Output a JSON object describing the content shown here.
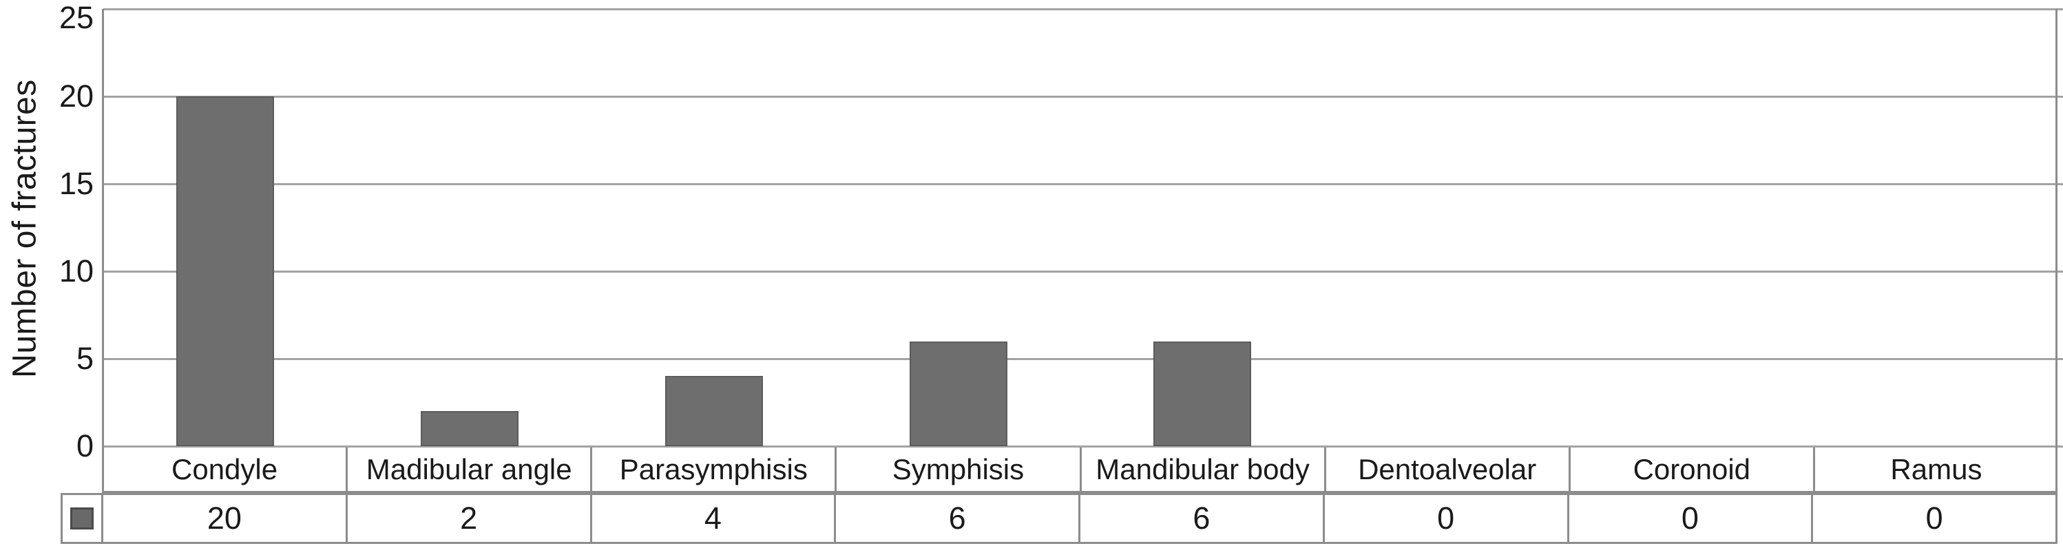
{
  "chart_data": {
    "type": "bar",
    "title": "",
    "xlabel": "",
    "ylabel": "Number of fractures",
    "categories": [
      "Condyle",
      "Madibular angle",
      "Parasymphisis",
      "Symphisis",
      "Mandibular body",
      "Dentoalveolar",
      "Coronoid",
      "Ramus"
    ],
    "series": [
      {
        "name": "Number of fractures",
        "values": [
          20,
          2,
          4,
          6,
          6,
          0,
          0,
          0
        ]
      }
    ],
    "y_ticks": [
      0,
      5,
      10,
      15,
      20,
      25
    ],
    "ylim": [
      0,
      25
    ],
    "grid": "horizontal",
    "legend_position": "table-left-swatch",
    "data_table_shown": true,
    "table_values": [
      "20",
      "2",
      "4",
      "6",
      "6",
      "0",
      "0",
      "0"
    ],
    "colors": {
      "bar_fill": "#6e6e6e",
      "bar_edge": "#5c5c5c",
      "gridline": "#a3a3a3",
      "border": "#8c8c8c",
      "text": "#1a1a1a",
      "swatch_fill": "#696969",
      "swatch_edge": "#4a4a4a",
      "background": "#ffffff"
    }
  }
}
